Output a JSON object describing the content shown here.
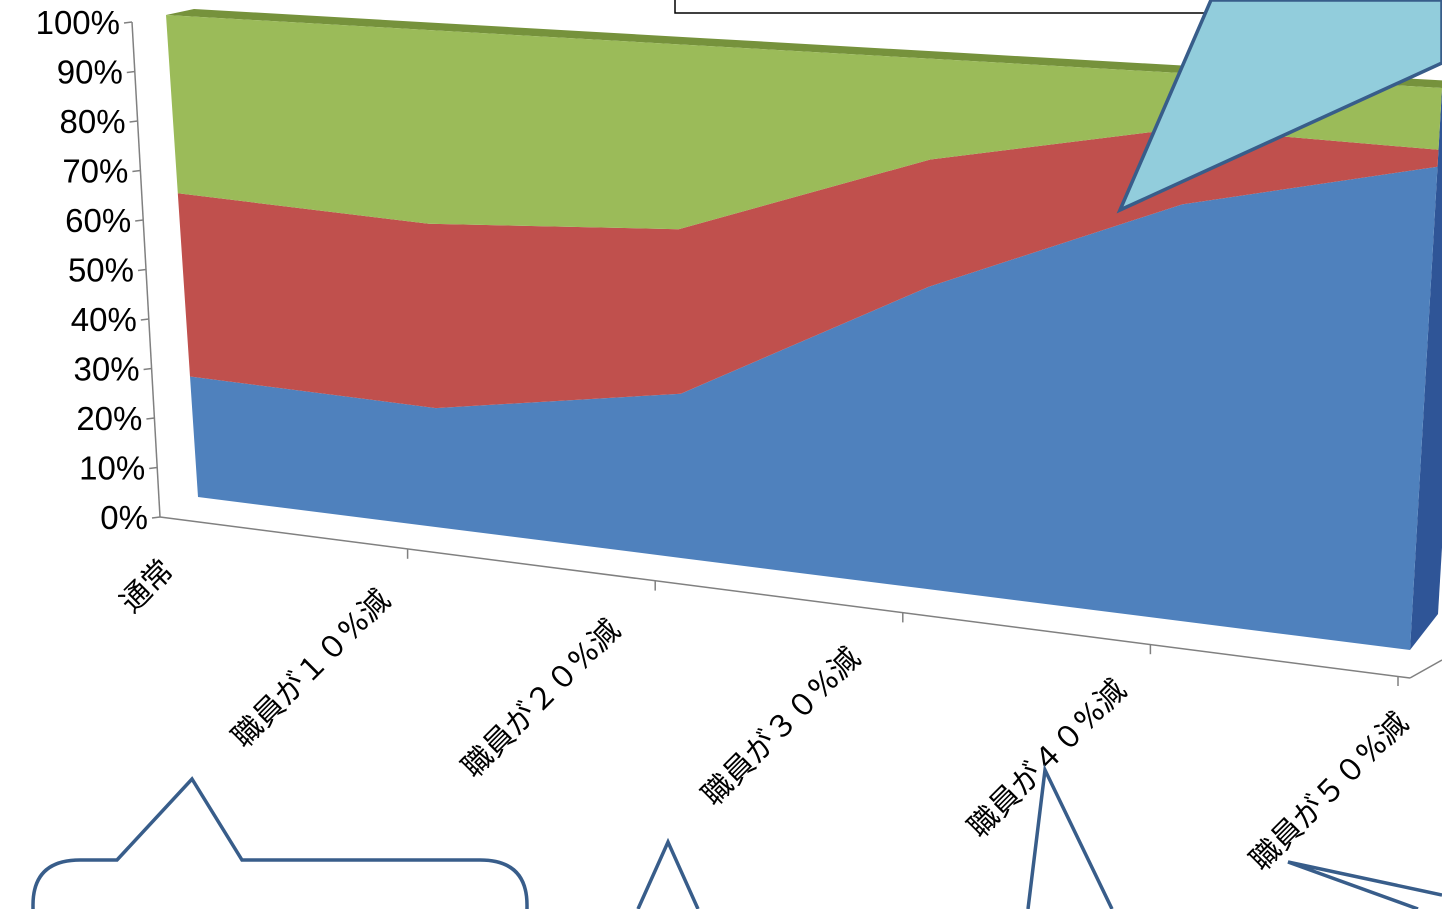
{
  "chart_data": {
    "type": "area",
    "stacked": "percent",
    "projection": "3d",
    "categories": [
      "通常",
      "職員が１０%減",
      "職員が２０%減",
      "職員が３０%減",
      "職員が４０%減",
      "職員が５０%減"
    ],
    "series": [
      {
        "values": [
          25,
          24,
          32,
          57,
          76,
          86
        ],
        "color": "#4F81BD"
      },
      {
        "values": [
          38,
          37,
          32,
          24,
          14,
          3
        ],
        "color": "#C0504D"
      },
      {
        "values": [
          37,
          39,
          36,
          19,
          10,
          11
        ],
        "color": "#9BBB59"
      }
    ],
    "yticks": [
      "0%",
      "10%",
      "20%",
      "30%",
      "40%",
      "50%",
      "60%",
      "70%",
      "80%",
      "90%",
      "100%"
    ],
    "ylim": [
      0,
      100
    ],
    "title": "",
    "xlabel": "",
    "ylabel": "",
    "grid": false,
    "legend": "none",
    "colors": {
      "callout_fill": "#92CDDC",
      "callout_stroke": "#385D8A",
      "axis": "#808080"
    }
  }
}
